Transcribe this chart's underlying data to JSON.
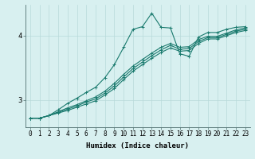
{
  "xlabel": "Humidex (Indice chaleur)",
  "bg_color": "#d8f0f0",
  "grid_color": "#b8dada",
  "line_color": "#1a7a6e",
  "xlim": [
    -0.5,
    23.5
  ],
  "ylim": [
    2.58,
    4.48
  ],
  "yticks": [
    3,
    4
  ],
  "xticks": [
    0,
    1,
    2,
    3,
    4,
    5,
    6,
    7,
    8,
    9,
    10,
    11,
    12,
    13,
    14,
    15,
    16,
    17,
    18,
    19,
    20,
    21,
    22,
    23
  ],
  "series1_x": [
    0,
    1,
    2,
    3,
    4,
    5,
    6,
    7,
    8,
    9,
    10,
    11,
    12,
    13,
    14,
    15,
    16,
    17,
    18,
    19,
    20,
    21,
    22,
    23
  ],
  "series1_y": [
    2.72,
    2.72,
    2.76,
    2.85,
    2.95,
    3.03,
    3.12,
    3.2,
    3.35,
    3.55,
    3.82,
    4.1,
    4.14,
    4.35,
    4.13,
    4.12,
    3.72,
    3.68,
    3.98,
    4.05,
    4.05,
    4.1,
    4.13,
    4.14
  ],
  "series2_x": [
    0,
    1,
    2,
    3,
    4,
    5,
    6,
    7,
    8,
    9,
    10,
    11,
    12,
    13,
    14,
    15,
    16,
    17,
    18,
    19,
    20,
    21,
    22,
    23
  ],
  "series2_y": [
    2.72,
    2.72,
    2.76,
    2.82,
    2.88,
    2.93,
    2.99,
    3.05,
    3.14,
    3.26,
    3.4,
    3.53,
    3.63,
    3.73,
    3.82,
    3.88,
    3.82,
    3.83,
    3.94,
    3.99,
    3.99,
    4.04,
    4.09,
    4.12
  ],
  "series3_x": [
    0,
    1,
    2,
    3,
    4,
    5,
    6,
    7,
    8,
    9,
    10,
    11,
    12,
    13,
    14,
    15,
    16,
    17,
    18,
    19,
    20,
    21,
    22,
    23
  ],
  "series3_y": [
    2.72,
    2.72,
    2.76,
    2.81,
    2.86,
    2.91,
    2.97,
    3.02,
    3.11,
    3.22,
    3.36,
    3.49,
    3.59,
    3.69,
    3.78,
    3.85,
    3.79,
    3.8,
    3.91,
    3.97,
    3.97,
    4.02,
    4.07,
    4.1
  ],
  "series4_x": [
    0,
    1,
    2,
    3,
    4,
    5,
    6,
    7,
    8,
    9,
    10,
    11,
    12,
    13,
    14,
    15,
    16,
    17,
    18,
    19,
    20,
    21,
    22,
    23
  ],
  "series4_y": [
    2.72,
    2.72,
    2.76,
    2.8,
    2.84,
    2.89,
    2.94,
    2.99,
    3.08,
    3.18,
    3.32,
    3.45,
    3.55,
    3.65,
    3.74,
    3.81,
    3.76,
    3.77,
    3.88,
    3.95,
    3.95,
    4.0,
    4.05,
    4.08
  ],
  "marker": "+",
  "markersize": 3,
  "linewidth": 0.8,
  "tick_fontsize": 5.5,
  "label_fontsize": 6.5
}
